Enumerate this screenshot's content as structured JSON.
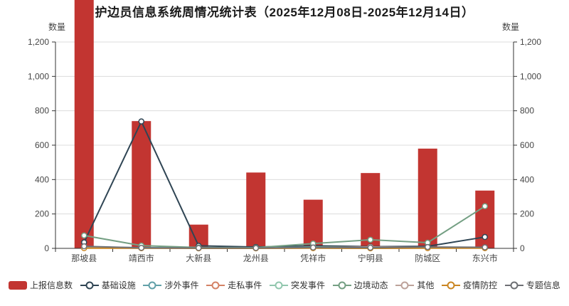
{
  "title": "护边员信息系统周情况统计表（2025年12月08日-2025年12月14日）",
  "y_axis_left": {
    "name": "数量",
    "tick_labels": [
      "0",
      "200",
      "400",
      "600",
      "800",
      "1,000",
      "1,200"
    ]
  },
  "y_axis_right": {
    "name": "数量",
    "tick_labels": [
      "0",
      "200",
      "400",
      "600",
      "800",
      "1,000",
      "1,200"
    ]
  },
  "legend": {
    "items": [
      {
        "label": "上报信息数",
        "marker": "bar",
        "color": "#c23531"
      },
      {
        "label": "基础设施",
        "marker": "line",
        "color": "#2f4554"
      },
      {
        "label": "涉外事件",
        "marker": "line",
        "color": "#61a0a8"
      },
      {
        "label": "走私事件",
        "marker": "line",
        "color": "#d48265"
      },
      {
        "label": "突发事件",
        "marker": "line",
        "color": "#91c7ae"
      },
      {
        "label": "边境动态",
        "marker": "line",
        "color": "#749f83"
      },
      {
        "label": "其他",
        "marker": "line",
        "color": "#bda29a"
      },
      {
        "label": "疫情防控",
        "marker": "line",
        "color": "#ca8622"
      },
      {
        "label": "专题信息",
        "marker": "line",
        "color": "#6e7074"
      }
    ]
  },
  "chart_data": {
    "type": "bar+line",
    "title": "护边员信息系统周情况统计表（2025年12月08日-2025年12月14日）",
    "categories": [
      "那坡县",
      "靖西市",
      "大新县",
      "龙州县",
      "凭祥市",
      "宁明县",
      "防城区",
      "东兴市"
    ],
    "xlabel": "",
    "ylabel": "数量",
    "ylim": [
      0,
      1200
    ],
    "ytick_interval": 200,
    "grid": true,
    "legend_position": "bottom",
    "clipped_categories": [
      "那坡县"
    ],
    "series": [
      {
        "name": "上报信息数",
        "type": "bar",
        "color": "#c23531",
        "values": [
          1450,
          740,
          138,
          441,
          283,
          438,
          580,
          336
        ]
      },
      {
        "name": "基础设施",
        "type": "line",
        "color": "#2f4554",
        "values": [
          35,
          738,
          15,
          8,
          15,
          10,
          12,
          66
        ]
      },
      {
        "name": "涉外事件",
        "type": "line",
        "color": "#61a0a8",
        "values": [
          8,
          4,
          3,
          2,
          3,
          2,
          3,
          5
        ]
      },
      {
        "name": "走私事件",
        "type": "line",
        "color": "#d48265",
        "values": [
          2,
          1,
          1,
          1,
          2,
          1,
          2,
          2
        ]
      },
      {
        "name": "突发事件",
        "type": "line",
        "color": "#91c7ae",
        "values": [
          5,
          2,
          2,
          2,
          8,
          6,
          5,
          4
        ]
      },
      {
        "name": "边境动态",
        "type": "line",
        "color": "#749f83",
        "values": [
          75,
          16,
          5,
          4,
          28,
          50,
          33,
          245
        ]
      },
      {
        "name": "其他",
        "type": "line",
        "color": "#bda29a",
        "values": [
          4,
          2,
          2,
          1,
          4,
          8,
          6,
          3
        ]
      },
      {
        "name": "疫情防控",
        "type": "line",
        "color": "#ca8622",
        "values": [
          1,
          1,
          0,
          0,
          1,
          0,
          1,
          1
        ]
      },
      {
        "name": "专题信息",
        "type": "line",
        "color": "#6e7074",
        "values": [
          12,
          3,
          2,
          2,
          5,
          4,
          8,
          6
        ]
      }
    ]
  }
}
